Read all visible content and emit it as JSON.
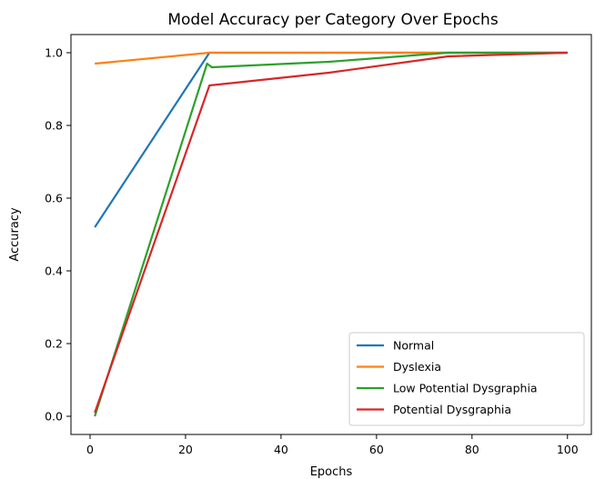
{
  "chart_data": {
    "type": "line",
    "title": "Model Accuracy per Category Over Epochs",
    "xlabel": "Epochs",
    "ylabel": "Accuracy",
    "xlim": [
      -4,
      105
    ],
    "ylim": [
      -0.05,
      1.05
    ],
    "xticks": [
      0,
      20,
      40,
      60,
      80,
      100
    ],
    "yticks": [
      0.0,
      0.2,
      0.4,
      0.6,
      0.8,
      1.0
    ],
    "ytick_labels": [
      "0.0",
      "0.2",
      "0.4",
      "0.6",
      "0.8",
      "1.0"
    ],
    "grid": false,
    "legend_position": "lower-right",
    "series": [
      {
        "name": "Normal",
        "color": "#1f77b4",
        "x": [
          1,
          25,
          50,
          75,
          100
        ],
        "y": [
          0.52,
          1.0,
          1.0,
          1.0,
          1.0
        ]
      },
      {
        "name": "Dyslexia",
        "color": "#ff7f0e",
        "x": [
          1,
          25,
          50,
          75,
          100
        ],
        "y": [
          0.97,
          1.0,
          1.0,
          1.0,
          1.0
        ]
      },
      {
        "name": "Low Potential Dysgraphia",
        "color": "#2ca02c",
        "x": [
          1,
          24.5,
          25.5,
          50,
          75,
          100
        ],
        "y": [
          0.0,
          0.97,
          0.96,
          0.975,
          1.0,
          1.0
        ]
      },
      {
        "name": "Potential Dysgraphia",
        "color": "#d62728",
        "x": [
          1,
          25,
          50,
          75,
          100
        ],
        "y": [
          0.01,
          0.91,
          0.945,
          0.99,
          1.0
        ]
      }
    ]
  }
}
